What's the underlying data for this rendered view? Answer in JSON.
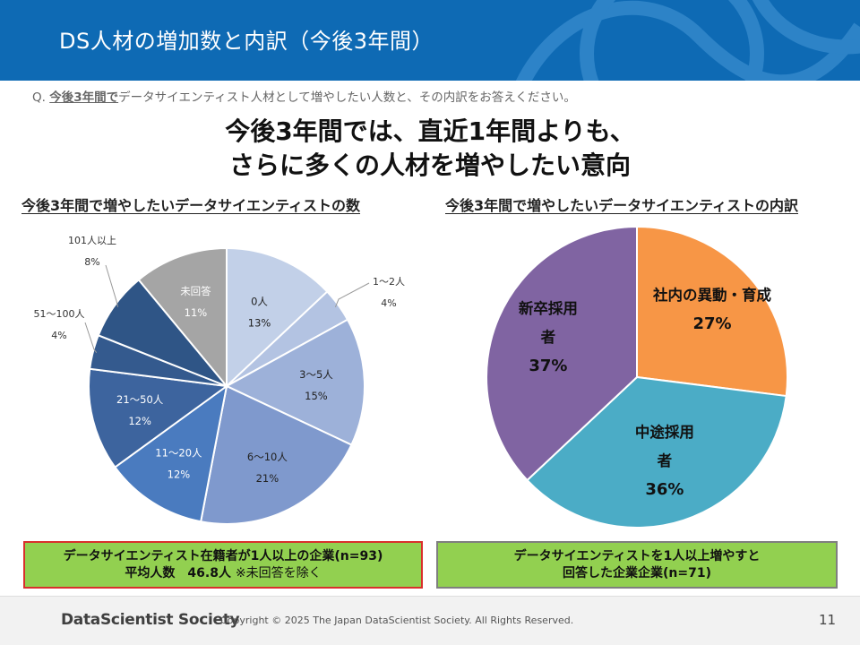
{
  "header": {
    "title": "DS人材の増加数と内訳（今後3年間）"
  },
  "question": {
    "prefix": "Q. ",
    "emphasis": "今後3年間で",
    "rest": "データサイエンティスト人材として増やしたい人数と、その内訳をお答えください。"
  },
  "headline": {
    "line1": "今後3年間では、直近1年間よりも、",
    "line2": "さらに多くの人材を増やしたい意向"
  },
  "chart_data": [
    {
      "type": "pie",
      "title": "今後3年間で増やしたいデータサイエンティストの数",
      "slices": [
        {
          "label": "0人",
          "value": 13,
          "pct": "13%",
          "color": "#c2d0e8"
        },
        {
          "label": "1～2人",
          "value": 4,
          "pct": "4%",
          "color": "#b3c3e2"
        },
        {
          "label": "3～5人",
          "value": 15,
          "pct": "15%",
          "color": "#9db1d9"
        },
        {
          "label": "6～10人",
          "value": 21,
          "pct": "21%",
          "color": "#7f99cd"
        },
        {
          "label": "11～20人",
          "value": 12,
          "pct": "12%",
          "color": "#4a7bbf"
        },
        {
          "label": "21～50人",
          "value": 12,
          "pct": "12%",
          "color": "#3d649e"
        },
        {
          "label": "51～100人",
          "value": 4,
          "pct": "4%",
          "color": "#345a8e"
        },
        {
          "label": "101人以上",
          "value": 8,
          "pct": "8%",
          "color": "#2f5586"
        },
        {
          "label": "未回答",
          "value": 11,
          "pct": "11%",
          "color": "#a5a5a5"
        }
      ]
    },
    {
      "type": "pie",
      "title": "今後3年間で増やしたいデータサイエンティストの内訳",
      "slices": [
        {
          "label": "社内の異動・育成",
          "value": 27,
          "pct": "27%",
          "color": "#f79646"
        },
        {
          "label": "中途採用者",
          "value": 36,
          "pct": "36%",
          "color": "#4bacc6"
        },
        {
          "label": "新卒採用者",
          "value": 37,
          "pct": "37%",
          "color": "#8064a2"
        }
      ]
    }
  ],
  "boxes": {
    "left": {
      "line1": "データサイエンティスト在籍者が1人以上の企業(n=93)",
      "line2": "平均人数　46.8人",
      "note": "※未回答を除く"
    },
    "right": {
      "line1": "データサイエンティストを1人以上増やすと",
      "line2": "回答した企業企業(n=71)"
    }
  },
  "footer": {
    "brand": "DataScientist Society",
    "copyright": "Copyright © 2025  The Japan DataScientist Society. All Rights Reserved.",
    "page": "11"
  }
}
